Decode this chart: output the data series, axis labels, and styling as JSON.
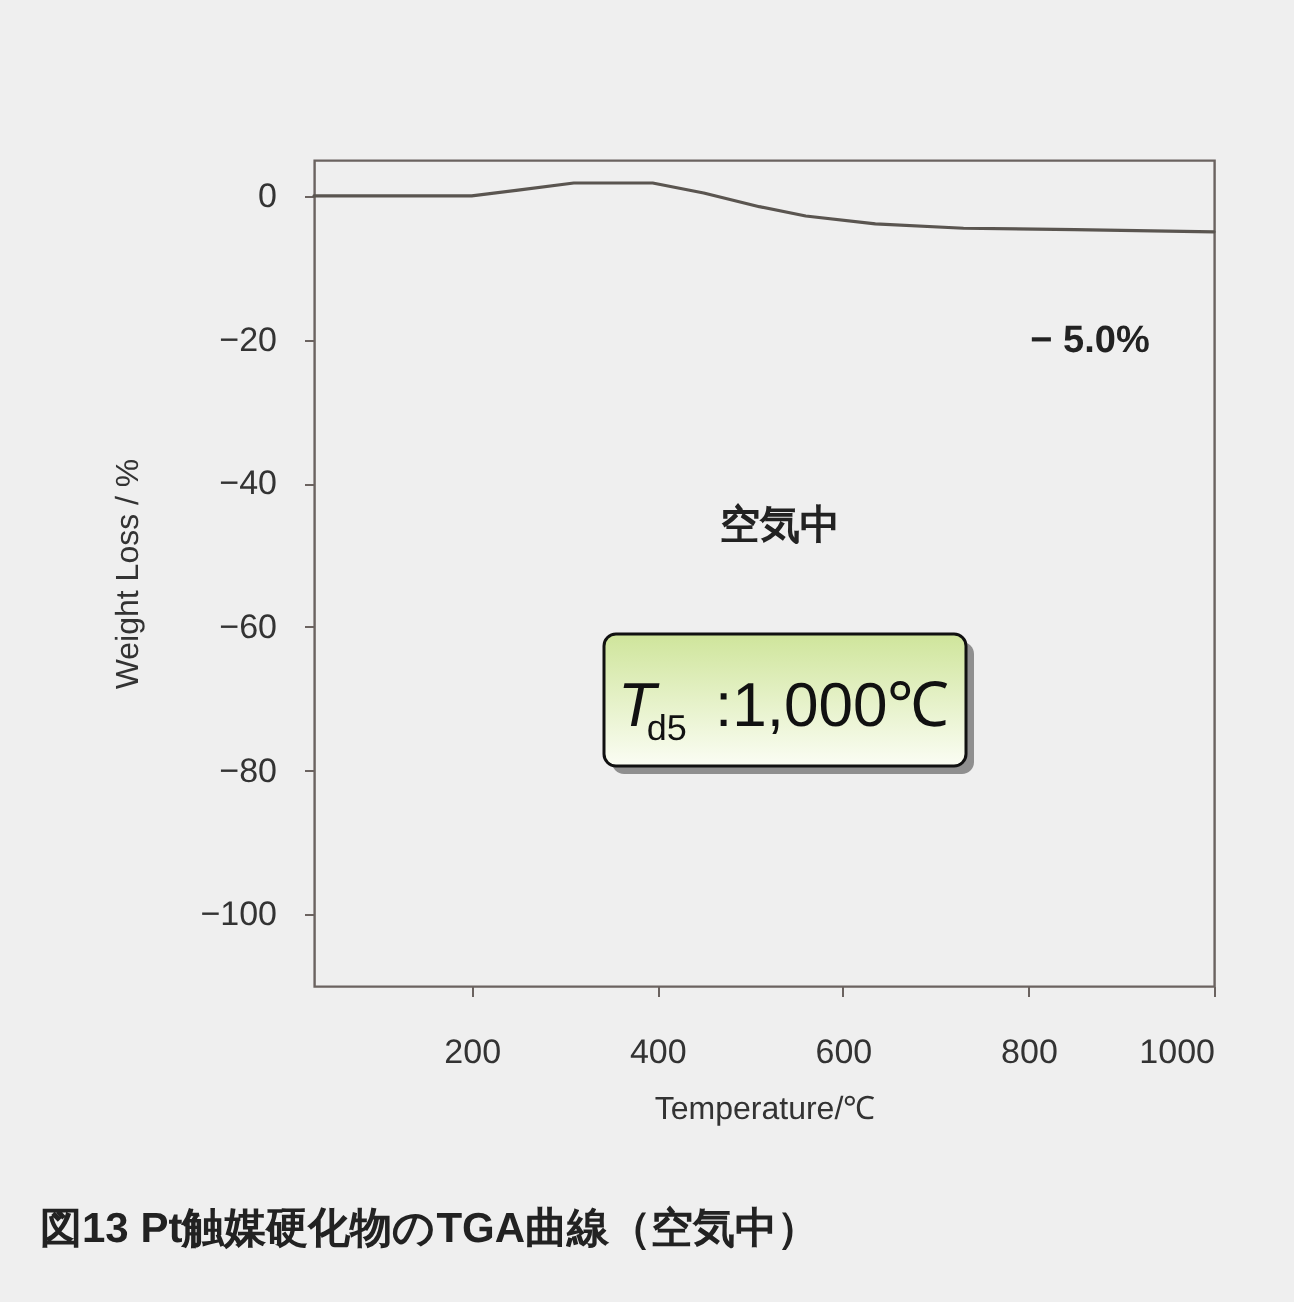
{
  "chart_data": {
    "type": "line",
    "title": "図13 Pt触媒硬化物のTGA曲線（空気中）",
    "xlabel": "Temperature/℃",
    "ylabel": "Weight Loss / %",
    "x": [
      30,
      100,
      200,
      250,
      310,
      395,
      450,
      510,
      560,
      635,
      730,
      850,
      1000
    ],
    "series": [
      {
        "color": "#5a5550",
        "values": [
          0,
          0,
          0,
          0.8,
          1.8,
          1.8,
          0.4,
          -1.5,
          -2.8,
          -3.9,
          -4.5,
          -4.7,
          -5.0
        ]
      }
    ],
    "xlim": [
      30,
      1000
    ],
    "xticks": [
      200,
      400,
      600,
      800,
      1000
    ],
    "ylim": [
      -110,
      5
    ],
    "yticks": [
      -100,
      -80,
      -60,
      -40,
      -20,
      0
    ],
    "grid": false,
    "marker": "none",
    "line_style": "solid",
    "annotations": [
      "− 5.0%",
      "空気中",
      "T$_{d5}$:1,000℃"
    ]
  }
}
